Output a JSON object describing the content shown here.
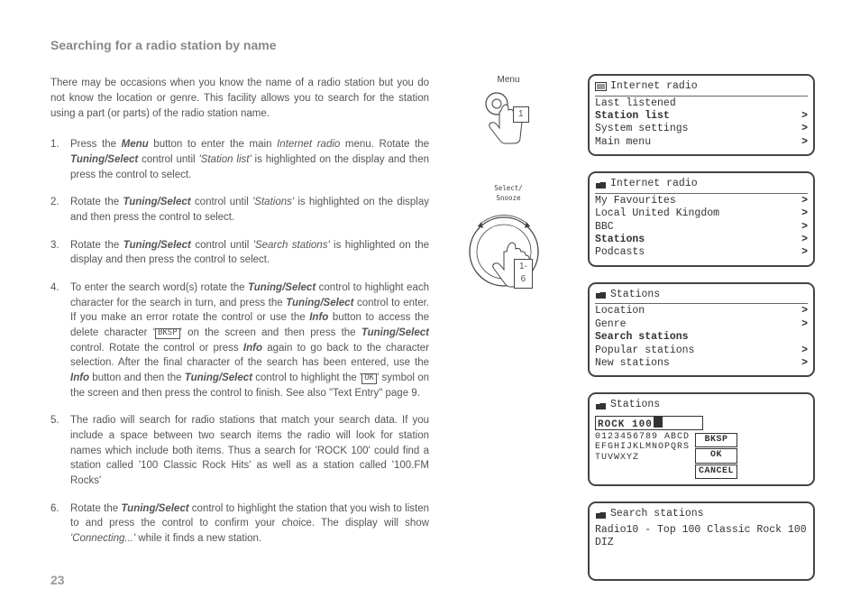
{
  "page_number": "23",
  "title": "Searching for a radio station by name",
  "intro": "There may be occasions when you know the name of a radio station but you do not know the location or genre. This facility allows you to search for the station using a part (or parts) of the radio station name.",
  "illustrations": {
    "menu_label": "Menu",
    "menu_callout": "1",
    "knob_label": "Select/\nSnooze",
    "knob_callout": "1-6"
  },
  "screens": {
    "s1": {
      "header": "Internet radio",
      "icon": "list-icon",
      "rows": [
        {
          "label": "Last listened",
          "arrow": false,
          "bold": false
        },
        {
          "label": "Station list",
          "arrow": true,
          "bold": true
        },
        {
          "label": "System settings",
          "arrow": true,
          "bold": false
        },
        {
          "label": "Main menu",
          "arrow": true,
          "bold": false
        }
      ]
    },
    "s2": {
      "header": "Internet radio",
      "icon": "folder-icon",
      "rows": [
        {
          "label": "My Favourites",
          "arrow": true,
          "bold": false
        },
        {
          "label": "Local United Kingdom",
          "arrow": true,
          "bold": false
        },
        {
          "label": "BBC",
          "arrow": true,
          "bold": false
        },
        {
          "label": "Stations",
          "arrow": true,
          "bold": true
        },
        {
          "label": "Podcasts",
          "arrow": true,
          "bold": false
        }
      ]
    },
    "s3": {
      "header": "Stations",
      "icon": "folder-icon",
      "rows": [
        {
          "label": "Location",
          "arrow": true,
          "bold": false
        },
        {
          "label": "Genre",
          "arrow": true,
          "bold": false
        },
        {
          "label": "Search stations",
          "arrow": false,
          "bold": true
        },
        {
          "label": "Popular stations",
          "arrow": true,
          "bold": false
        },
        {
          "label": "New stations",
          "arrow": true,
          "bold": false
        }
      ]
    },
    "s4": {
      "header": "Stations",
      "icon": "folder-icon",
      "entry_text": "ROCK 100",
      "char_rows": [
        "0123456789 ABCD",
        "EFGHIJKLMNOPQRS",
        "TUVWXYZ"
      ],
      "side_btns": [
        "BKSP",
        "OK",
        "CANCEL"
      ]
    },
    "s5": {
      "header": "Search stations",
      "icon": "folder-icon",
      "body": "Radio10 - Top 100 Classic Rock 100 DIZ"
    }
  },
  "inline": {
    "bksp": "BKSP",
    "ok": "OK"
  }
}
